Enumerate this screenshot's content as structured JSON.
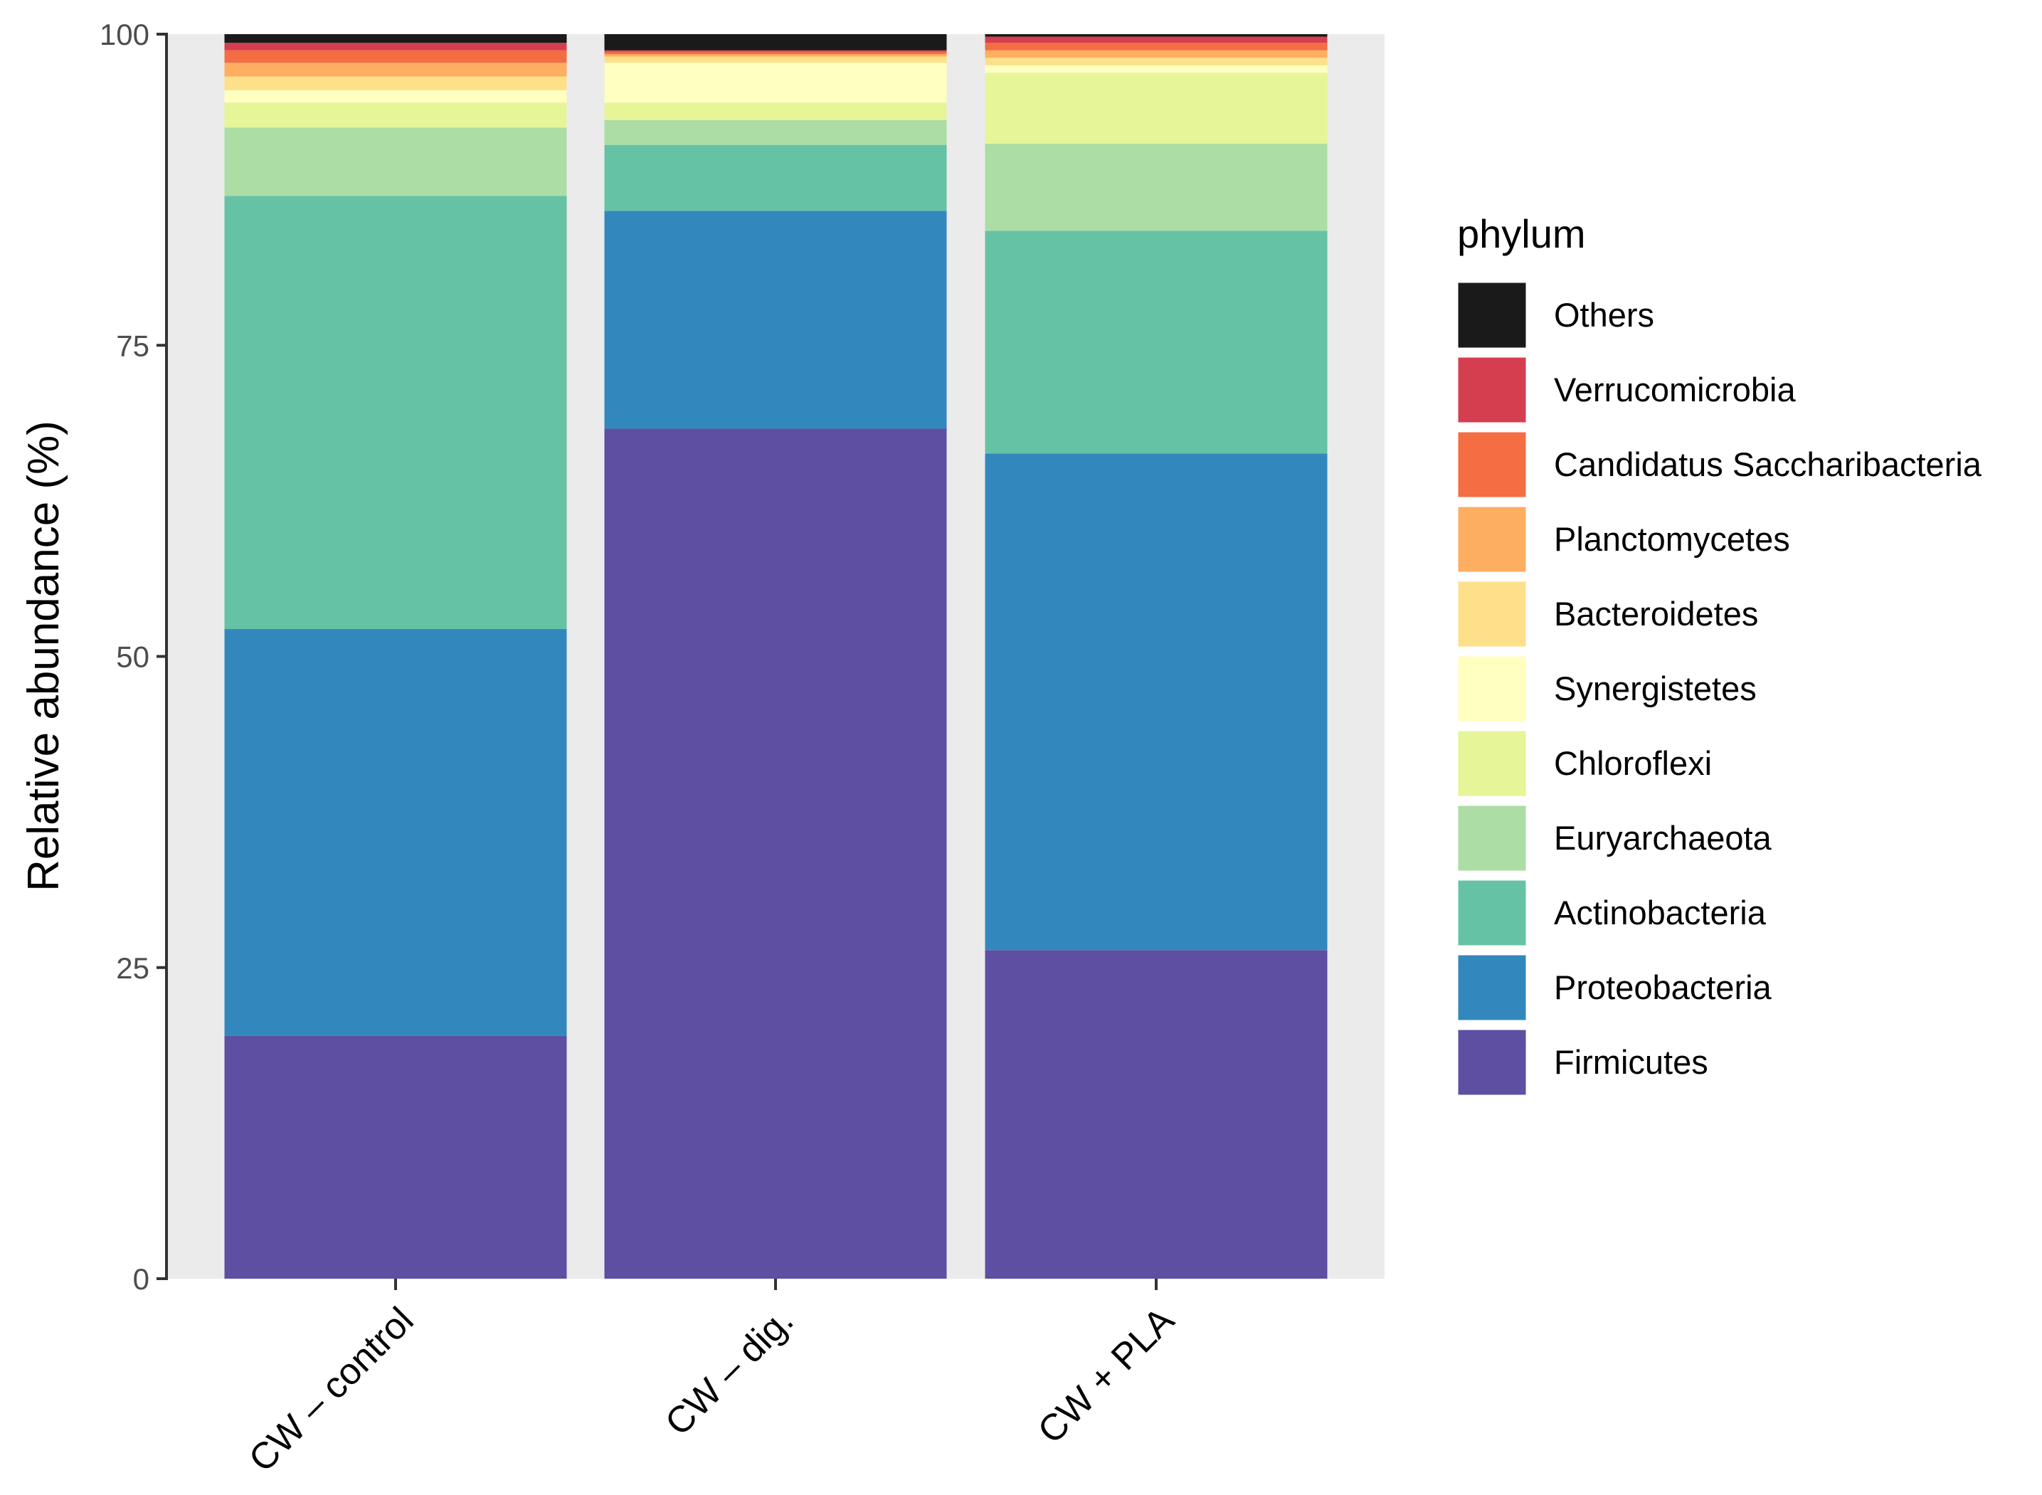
{
  "chart_data": {
    "type": "bar",
    "stacked": true,
    "title": "",
    "xlabel": "",
    "ylabel": "Relative abundance (%)",
    "ylim": [
      0,
      100
    ],
    "yticks": [
      "0",
      "25",
      "50",
      "75",
      "100"
    ],
    "categories": [
      "CW – control",
      "CW – dig.",
      "CW + PLA"
    ],
    "legend_title": "phylum",
    "legend_position": "right",
    "series": [
      {
        "name": "Firmicutes",
        "color": "#5e4fa2",
        "values": [
          19.5,
          68.3,
          26.4
        ]
      },
      {
        "name": "Proteobacteria",
        "color": "#3288bd",
        "values": [
          32.7,
          17.5,
          39.9
        ]
      },
      {
        "name": "Actinobacteria",
        "color": "#66c2a5",
        "values": [
          34.8,
          5.3,
          17.9
        ]
      },
      {
        "name": "Euryarchaeota",
        "color": "#abdda4",
        "values": [
          5.5,
          2.0,
          7.0
        ]
      },
      {
        "name": "Chloroflexi",
        "color": "#e6f598",
        "values": [
          2.0,
          1.4,
          5.7
        ]
      },
      {
        "name": "Synergistetes",
        "color": "#ffffbf",
        "values": [
          1.0,
          3.2,
          0.6
        ]
      },
      {
        "name": "Bacteroidetes",
        "color": "#fee08b",
        "values": [
          1.1,
          0.5,
          0.6
        ]
      },
      {
        "name": "Planctomycetes",
        "color": "#fdae61",
        "values": [
          1.1,
          0.2,
          0.6
        ]
      },
      {
        "name": "Candidatus Saccharibacteria",
        "color": "#f46d43",
        "values": [
          1.0,
          0.2,
          0.6
        ]
      },
      {
        "name": "Verrucomicrobia",
        "color": "#d53e4f",
        "values": [
          0.6,
          0.1,
          0.5
        ]
      },
      {
        "name": "Others",
        "color": "#1a1a1a",
        "values": [
          0.7,
          1.3,
          0.2
        ]
      }
    ]
  },
  "colors": {
    "panel_background": "#ebebeb",
    "axis_line": "#333333",
    "tick_label": "#4d4d4d"
  }
}
